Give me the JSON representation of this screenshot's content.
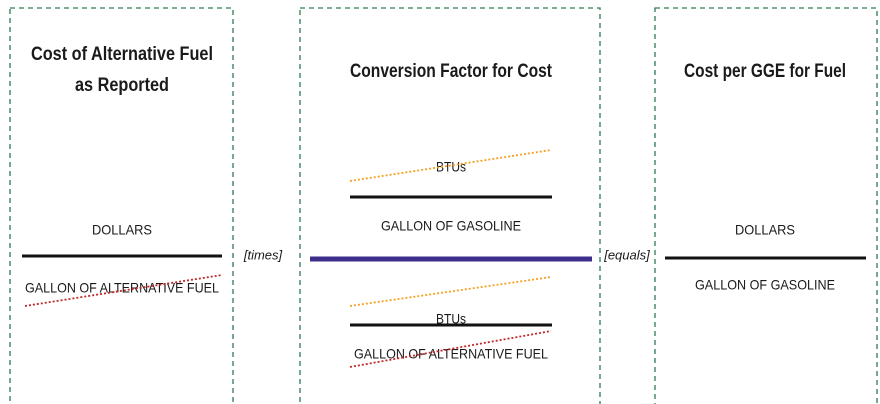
{
  "panels": [
    {
      "title_lines": [
        "Cost of Alternative Fuel",
        "as Reported"
      ],
      "numerator": "DOLLARS",
      "denominator": "GALLON OF ALTERNATIVE FUEL"
    },
    {
      "title": "Conversion Factor for Cost",
      "upper": {
        "numerator": "BTUs",
        "denominator": "GALLON OF GASOLINE"
      },
      "lower": {
        "numerator": "BTUs",
        "denominator": "GALLON OF ALTERNATIVE FUEL"
      }
    },
    {
      "title": "Cost per GGE for Fuel",
      "numerator": "DOLLARS",
      "denominator": "GALLON OF GASOLINE"
    }
  ],
  "operators": [
    "[times]",
    "[equals]"
  ]
}
